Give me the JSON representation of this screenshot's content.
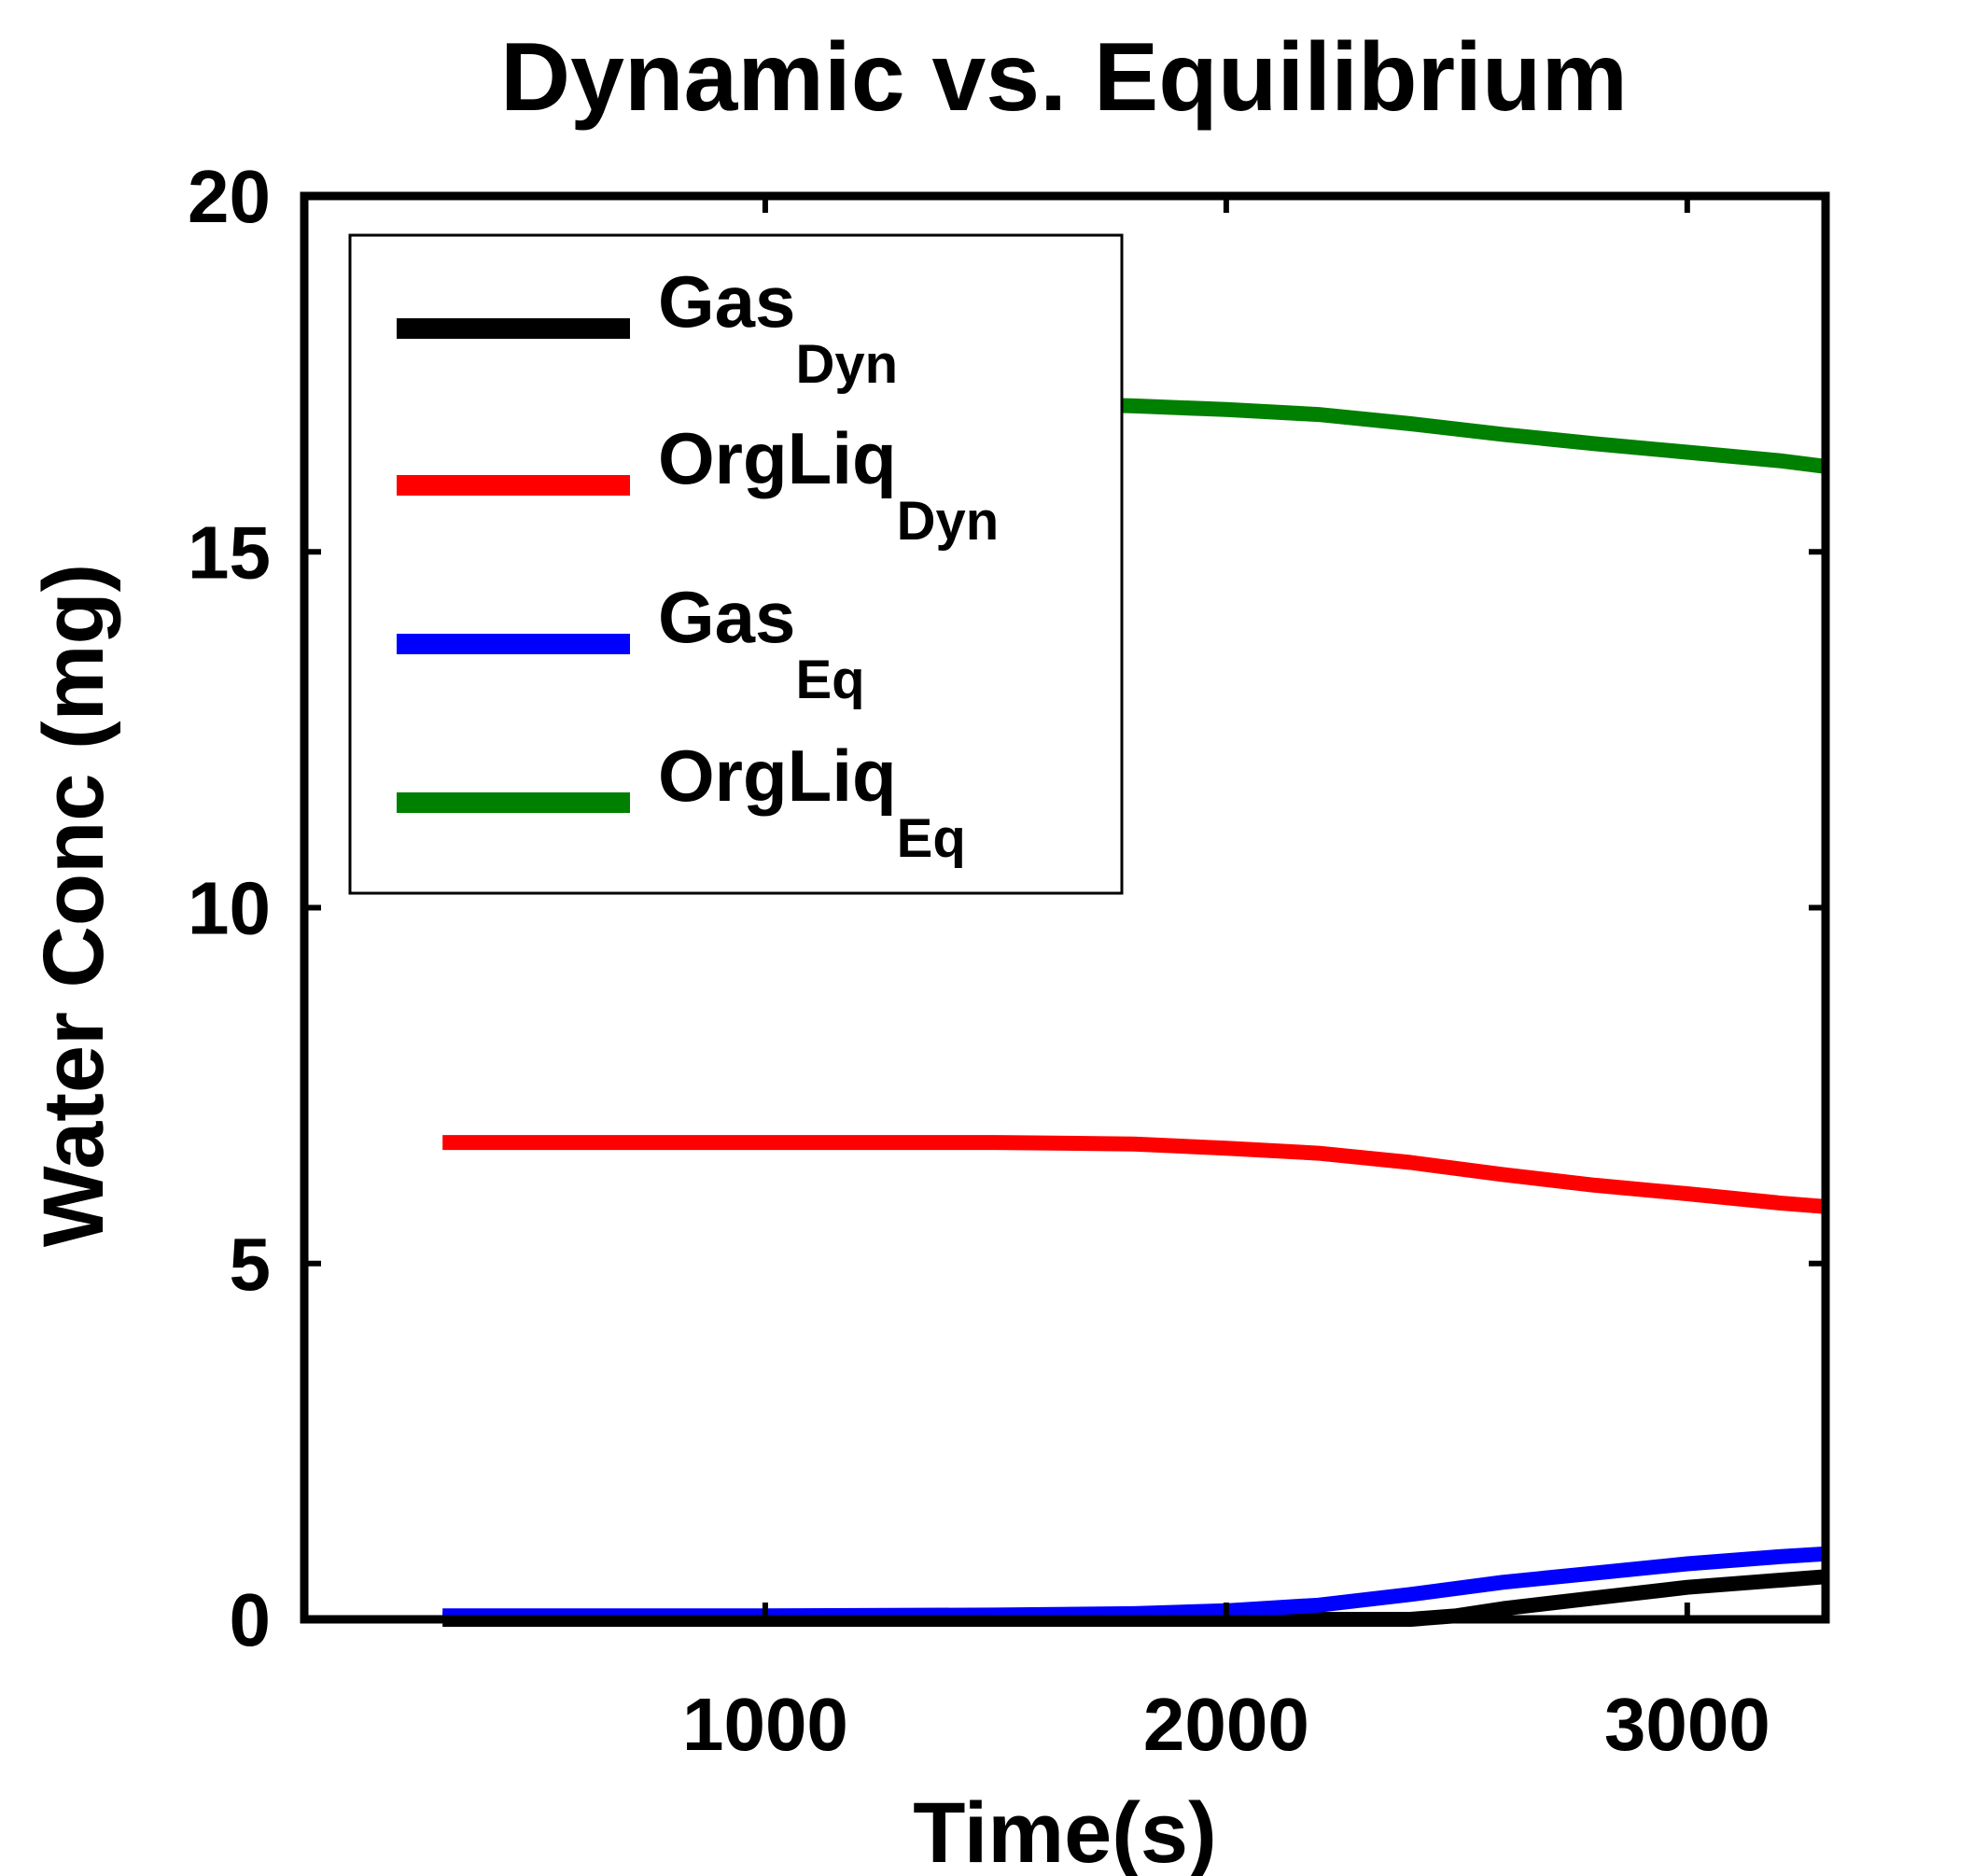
{
  "chart_data": {
    "type": "line",
    "title": "Dynamic vs. Equilibrium",
    "xlabel": "Time(s)",
    "ylabel": "Water Conc (mg)",
    "xlim": [
      0,
      3300
    ],
    "ylim": [
      0,
      20
    ],
    "xticks": [
      1000,
      2000,
      3000
    ],
    "yticks": [
      0,
      5,
      10,
      15,
      20
    ],
    "grid": false,
    "legend_position": "top-left",
    "series": [
      {
        "name": "Gas",
        "subscript": "Dyn",
        "color": "#000000",
        "x": [
          300,
          600,
          1000,
          1500,
          2000,
          2200,
          2400,
          2500,
          2600,
          2800,
          3000,
          3200,
          3300
        ],
        "y": [
          0,
          0,
          0,
          0,
          0,
          0,
          0,
          0.05,
          0.15,
          0.3,
          0.45,
          0.55,
          0.6
        ]
      },
      {
        "name": "OrgLiq",
        "subscript": "Dyn",
        "color": "#ff0000",
        "x": [
          300,
          600,
          1000,
          1500,
          1800,
          2000,
          2200,
          2400,
          2600,
          2800,
          3000,
          3200,
          3300
        ],
        "y": [
          6.7,
          6.7,
          6.7,
          6.7,
          6.68,
          6.62,
          6.55,
          6.42,
          6.25,
          6.1,
          5.98,
          5.85,
          5.8
        ]
      },
      {
        "name": "Gas",
        "subscript": "Eq",
        "color": "#0000ff",
        "x": [
          300,
          600,
          1000,
          1500,
          1800,
          2000,
          2200,
          2400,
          2600,
          2800,
          3000,
          3200,
          3300
        ],
        "y": [
          0.05,
          0.05,
          0.05,
          0.06,
          0.08,
          0.12,
          0.2,
          0.35,
          0.52,
          0.65,
          0.78,
          0.88,
          0.92
        ]
      },
      {
        "name": "OrgLiq",
        "subscript": "Eq",
        "color": "#008000",
        "x": [
          300,
          600,
          1000,
          1500,
          1800,
          2000,
          2200,
          2400,
          2600,
          2800,
          3000,
          3200,
          3300
        ],
        "y": [
          17.2,
          17.18,
          17.15,
          17.1,
          17.05,
          17.0,
          16.93,
          16.8,
          16.65,
          16.52,
          16.4,
          16.28,
          16.2
        ]
      }
    ]
  }
}
